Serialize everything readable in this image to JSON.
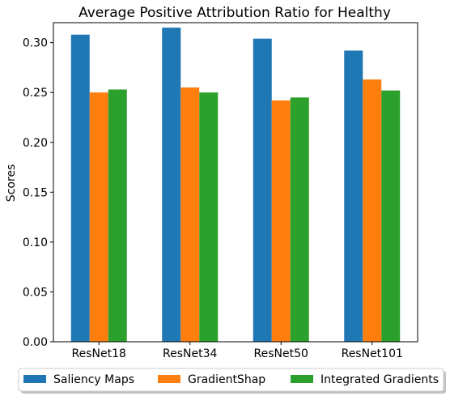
{
  "chart_data": {
    "type": "bar",
    "title": "Average Positive Attribution Ratio for Healthy",
    "xlabel": "",
    "ylabel": "Scores",
    "categories": [
      "ResNet18",
      "ResNet34",
      "ResNet50",
      "ResNet101"
    ],
    "series": [
      {
        "name": "Saliency Maps",
        "color": "#1f77b4",
        "values": [
          0.308,
          0.315,
          0.304,
          0.292
        ]
      },
      {
        "name": "GradientShap",
        "color": "#ff7f0e",
        "values": [
          0.25,
          0.255,
          0.242,
          0.263
        ]
      },
      {
        "name": "Integrated Gradients",
        "color": "#2ca02c",
        "values": [
          0.253,
          0.25,
          0.245,
          0.252
        ]
      }
    ],
    "ylim": [
      0,
      0.32
    ],
    "yticks": [
      "0.00",
      "0.05",
      "0.10",
      "0.15",
      "0.20",
      "0.25",
      "0.30"
    ],
    "grid": false,
    "legend_position": "bottom-center"
  }
}
